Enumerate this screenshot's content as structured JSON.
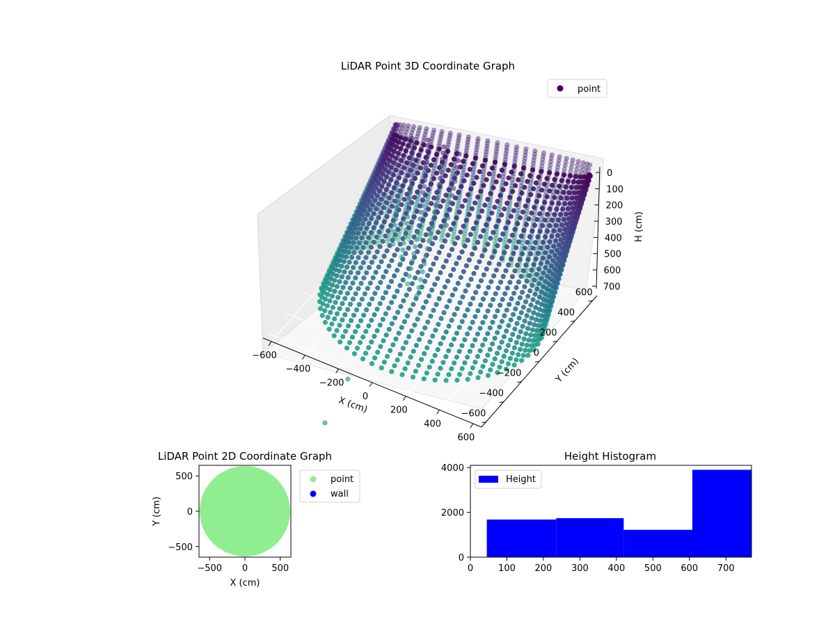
{
  "colors": {
    "cloud_dark": "#440154",
    "cloud_mid": "#3b528b",
    "cloud_teal": "#2c7f8e",
    "cloud_green": "#49b39b",
    "point_2d": "#90ee90",
    "wall_2d": "#0000ff",
    "histogram": "#0000ff"
  },
  "chart_data": [
    {
      "type": "scatter3d",
      "title": "LiDAR Point 3D Coordinate Graph",
      "xlabel": "X (cm)",
      "ylabel": "Y (cm)",
      "zlabel": "H (cm)",
      "xlim": [
        -650,
        650
      ],
      "ylim": [
        -650,
        650
      ],
      "zlim": [
        750,
        0
      ],
      "x_ticks": [
        "−600",
        "−400",
        "−200",
        "0",
        "200",
        "400",
        "600"
      ],
      "y_ticks": [
        "−600",
        "−400",
        "−200",
        "0",
        "200",
        "400",
        "600"
      ],
      "z_ticks": [
        "0",
        "100",
        "200",
        "300",
        "400",
        "500",
        "600",
        "700"
      ],
      "z_axis_inverted": true,
      "grid": true,
      "legend": {
        "placement": "top-right",
        "entries": [
          "point"
        ]
      },
      "series": [
        {
          "name": "point",
          "shape": "cylindrical wall of points",
          "radius": 600,
          "h_range": [
            0,
            750
          ],
          "color_by": "height",
          "colormap": "viridis"
        }
      ],
      "outliers": [
        {
          "x": -200,
          "y": -620,
          "h": 700
        },
        {
          "x": 0,
          "y": -650,
          "h": 750
        }
      ]
    },
    {
      "type": "scatter",
      "title": "LiDAR Point 2D Coordinate Graph",
      "xlabel": "X (cm)",
      "ylabel": "Y (cm)",
      "xlim": [
        -650,
        650
      ],
      "ylim": [
        -650,
        650
      ],
      "x_ticks": [
        -500,
        0,
        500
      ],
      "y_ticks": [
        -500,
        0,
        500
      ],
      "legend": {
        "placement": "outside-right",
        "entries": [
          "point",
          "wall"
        ]
      },
      "series": [
        {
          "name": "point",
          "shape": "filled disk",
          "radius": 640
        },
        {
          "name": "wall",
          "values": []
        }
      ]
    },
    {
      "type": "bar",
      "title": "Height Histogram",
      "xlim": [
        0,
        770
      ],
      "ylim": [
        0,
        4100
      ],
      "x_ticks": [
        0,
        100,
        200,
        300,
        400,
        500,
        600,
        700
      ],
      "y_ticks": [
        0,
        2000,
        4000
      ],
      "legend": {
        "placement": "top-left",
        "entries": [
          "Height"
        ]
      },
      "series": [
        {
          "name": "Height",
          "bins": [
            {
              "x0": 45,
              "x1": 235,
              "count": 1680
            },
            {
              "x0": 235,
              "x1": 420,
              "count": 1740
            },
            {
              "x0": 420,
              "x1": 608,
              "count": 1220
            },
            {
              "x0": 608,
              "x1": 770,
              "count": 3900
            }
          ]
        }
      ]
    }
  ]
}
